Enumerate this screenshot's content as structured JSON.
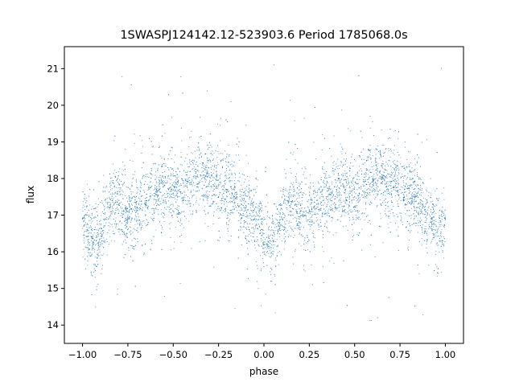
{
  "chart_data": {
    "type": "scatter",
    "title": "1SWASPJ124142.12-523903.6 Period 1785068.0s",
    "xlabel": "phase",
    "ylabel": "flux",
    "xlim": [
      -1.1,
      1.1
    ],
    "ylim": [
      13.5,
      21.6
    ],
    "x_ticks": [
      -1.0,
      -0.75,
      -0.5,
      -0.25,
      0.0,
      0.25,
      0.5,
      0.75,
      1.0
    ],
    "x_tick_labels": [
      "−1.00",
      "−0.75",
      "−0.50",
      "−0.25",
      "0.00",
      "0.25",
      "0.50",
      "0.75",
      "1.00"
    ],
    "y_ticks": [
      14,
      15,
      16,
      17,
      18,
      19,
      20,
      21
    ],
    "y_tick_labels": [
      "14",
      "15",
      "16",
      "17",
      "18",
      "19",
      "20",
      "21"
    ],
    "grid": false,
    "legend": "none",
    "marker_color": "#1f77b4",
    "series": [
      {
        "x": [
          -1.0,
          -0.975,
          -0.95,
          -0.925,
          -0.9,
          -0.875,
          -0.85,
          -0.825,
          -0.8,
          -0.775,
          -0.75,
          -0.725,
          -0.7,
          -0.675,
          -0.65,
          -0.625,
          -0.6,
          -0.575,
          -0.55,
          -0.525,
          -0.5,
          -0.475,
          -0.45,
          -0.425,
          -0.4,
          -0.375,
          -0.35,
          -0.325,
          -0.3,
          -0.275,
          -0.25,
          -0.225,
          -0.2,
          -0.175,
          -0.15,
          -0.125,
          -0.1,
          -0.075,
          -0.05,
          -0.025,
          0.0,
          0.025,
          0.05,
          0.075,
          0.1,
          0.125,
          0.15,
          0.175,
          0.2,
          0.225,
          0.25,
          0.275,
          0.3,
          0.325,
          0.35,
          0.375,
          0.4,
          0.425,
          0.45,
          0.475,
          0.5,
          0.525,
          0.55,
          0.575,
          0.6,
          0.625,
          0.65,
          0.675,
          0.7,
          0.725,
          0.75,
          0.775,
          0.8,
          0.825,
          0.85,
          0.875,
          0.9,
          0.925,
          0.95,
          0.975,
          1.0
        ],
        "y": [
          16.9,
          16.6,
          16.4,
          16.3,
          16.5,
          16.9,
          17.2,
          17.3,
          17.3,
          17.1,
          17.0,
          17.1,
          17.2,
          17.3,
          17.4,
          17.5,
          17.6,
          17.7,
          17.8,
          17.7,
          17.6,
          17.5,
          17.6,
          17.8,
          17.9,
          18.0,
          18.1,
          18.0,
          17.9,
          17.8,
          17.8,
          17.7,
          17.7,
          17.6,
          17.5,
          17.3,
          17.2,
          17.0,
          16.9,
          16.7,
          16.5,
          16.4,
          16.3,
          16.5,
          16.9,
          17.2,
          17.3,
          17.3,
          17.1,
          17.0,
          17.1,
          17.2,
          17.3,
          17.4,
          17.5,
          17.6,
          17.7,
          17.8,
          17.7,
          17.6,
          17.5,
          17.6,
          17.8,
          17.9,
          18.0,
          18.1,
          18.0,
          17.9,
          17.8,
          17.8,
          17.7,
          17.7,
          17.6,
          17.5,
          17.3,
          17.2,
          17.0,
          16.9,
          16.7,
          16.5,
          16.9
        ]
      }
    ]
  }
}
